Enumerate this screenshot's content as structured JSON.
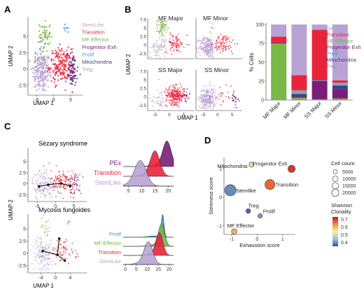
{
  "colors": {
    "StemLike": "#b9a3d4",
    "Transition": "#e8243c",
    "MF Effector": "#7ab648",
    "Progenitor Exh": "#7a1e78",
    "Prolif": "#3b9fd1",
    "Mitochondria": "#3b3f8c",
    "Treg": "#9f9aa8",
    "axis": "#333333"
  },
  "panels": {
    "A": {
      "letter": "A",
      "xlabel": "UMAP 1",
      "ylabel": "UMAP 2"
    },
    "B": {
      "letter": "B",
      "xlabel": "UMAP 1",
      "ylabel": "UMAP 2"
    },
    "C": {
      "letter": "C",
      "xlabel": "UMAP 1",
      "ylabel": "UMAP 2"
    },
    "D": {
      "letter": "D"
    }
  },
  "legend_A": [
    {
      "name": "StemLike",
      "color": "#b9a3d4"
    },
    {
      "name": "Transition",
      "color": "#e8243c"
    },
    {
      "name": "MF Effector",
      "color": "#7ab648"
    },
    {
      "name": "Progenitor Exh",
      "color": "#7a1e78"
    },
    {
      "name": "Prolif",
      "color": "#3b9fd1"
    },
    {
      "name": "Mitochondria",
      "color": "#3b3f8c"
    },
    {
      "name": "Treg",
      "color": "#9f9aa8"
    }
  ],
  "facets_B": [
    "MF Major",
    "MF Minor",
    "SS Major",
    "SS Minor"
  ],
  "titles_C": [
    "Sézary syndrome",
    "Mycosis fungoides"
  ],
  "ridge_labels_C_top": [
    "PEx",
    "Transition",
    "StemLike"
  ],
  "ridge_labels_C_bottom": [
    "Prolif",
    "MF Effector",
    "Transition",
    "StemLike"
  ],
  "chart_data": [
    {
      "id": "A",
      "type": "scatter",
      "xlabel": "UMAP 1",
      "ylabel": "UMAP 2",
      "xticks": [
        -5,
        0,
        5
      ],
      "yticks": [
        -2.5,
        0.0,
        2.5,
        5.0,
        7.5
      ],
      "xlim": [
        -7.5,
        8.5
      ],
      "ylim": [
        -4,
        8
      ],
      "clusters": [
        {
          "name": "StemLike",
          "color": "#b9a3d4",
          "cx": -3.5,
          "cy": -0.5,
          "sx": 1.4,
          "sy": 1.6,
          "n": 190
        },
        {
          "name": "Treg",
          "color": "#9f9aa8",
          "cx": -4.0,
          "cy": 2.0,
          "sx": 0.9,
          "sy": 1.5,
          "n": 40
        },
        {
          "name": "MF Effector",
          "color": "#7ab648",
          "cx": -2.5,
          "cy": 5.2,
          "sx": 0.8,
          "sy": 1.3,
          "n": 55
        },
        {
          "name": "Transition",
          "color": "#e8243c",
          "cx": 2.0,
          "cy": 0.5,
          "sx": 1.6,
          "sy": 1.3,
          "n": 180
        },
        {
          "name": "Progenitor Exh",
          "color": "#7a1e78",
          "cx": 5.5,
          "cy": 0.0,
          "sx": 0.8,
          "sy": 1.3,
          "n": 70
        },
        {
          "name": "Prolif",
          "color": "#3b9fd1",
          "cx": 3.5,
          "cy": 6.0,
          "sx": 0.4,
          "sy": 0.4,
          "n": 8
        },
        {
          "name": "Mitochondria",
          "color": "#3b3f8c",
          "cx": 6.0,
          "cy": -1.5,
          "sx": 0.6,
          "sy": 0.5,
          "n": 12
        }
      ]
    },
    {
      "id": "B-stacked",
      "type": "bar",
      "ylabel": "% Cells",
      "yticks": [
        0,
        25,
        50,
        75,
        100
      ],
      "ylim": [
        0,
        100
      ],
      "categories": [
        "MF Major",
        "MF Minor",
        "SS Major",
        "SS Minor"
      ],
      "series": [
        {
          "name": "MF Effector",
          "values": [
            75,
            3,
            1,
            2
          ]
        },
        {
          "name": "Progenitor Exh",
          "values": [
            1,
            2,
            24,
            12
          ]
        },
        {
          "name": "Mitochondria",
          "values": [
            0,
            3,
            0,
            5
          ]
        },
        {
          "name": "Prolif",
          "values": [
            0,
            1,
            1,
            1
          ]
        },
        {
          "name": "Treg",
          "values": [
            0,
            4,
            0,
            3
          ]
        },
        {
          "name": "Transition",
          "values": [
            8,
            20,
            67,
            3
          ]
        },
        {
          "name": "StemLike",
          "values": [
            16,
            67,
            7,
            74
          ]
        }
      ]
    },
    {
      "id": "B-umap",
      "type": "scatter",
      "xlabel": "UMAP 1",
      "ylabel": "UMAP 2",
      "xticks": [
        -5,
        0,
        5
      ],
      "yticks": [
        -2.5,
        0,
        2.5,
        5,
        7.5
      ],
      "facets": [
        {
          "name": "MF Major",
          "weights": {
            "MF Effector": 3,
            "Transition": 1,
            "StemLike": 0.8,
            "Progenitor Exh": 0.1
          }
        },
        {
          "name": "MF Minor",
          "weights": {
            "StemLike": 3,
            "Transition": 1,
            "MF Effector": 0.3,
            "Progenitor Exh": 0.2
          }
        },
        {
          "name": "SS Major",
          "weights": {
            "Transition": 3,
            "StemLike": 0.4,
            "Progenitor Exh": 0.8
          }
        },
        {
          "name": "SS Minor",
          "weights": {
            "StemLike": 3,
            "Progenitor Exh": 0.9,
            "Transition": 0.2
          }
        }
      ]
    },
    {
      "id": "C",
      "type": "line",
      "xlabel": "UMAP 1",
      "ylabel": "UMAP 2",
      "panels": [
        {
          "title": "Sézary syndrome",
          "xticks": [
            -5,
            0,
            5
          ],
          "yticks": [
            -2.5,
            0.0,
            2.5,
            5.0
          ],
          "trajectory": [
            [
              -4.5,
              -0.6
            ],
            [
              -2.0,
              -0.2
            ],
            [
              1.5,
              0.1
            ],
            [
              4.0,
              -0.5
            ]
          ],
          "ridge_xticks": [
            5,
            10,
            15,
            20
          ],
          "ridges": [
            {
              "name": "PEx",
              "color": "#7a1e78",
              "peak": 19.5,
              "width": 1.6
            },
            {
              "name": "Transition",
              "color": "#e8243c",
              "peak": 15.0,
              "width": 1.8
            },
            {
              "name": "StemLike",
              "color": "#b9a3d4",
              "peak": 9.5,
              "width": 2.2
            }
          ]
        },
        {
          "title": "Mycosis fungoides",
          "xticks": [
            -4,
            0,
            4
          ],
          "yticks": [
            -2.5,
            0.0,
            2.5,
            5.0
          ],
          "trajectory": [
            [
              -3.5,
              0.5
            ],
            [
              0.5,
              -0.3
            ],
            [
              2.5,
              -1.5
            ]
          ],
          "branch": [
            [
              0.5,
              -0.3
            ],
            [
              1.0,
              3.0
            ]
          ],
          "ridge_xticks": [
            0,
            5,
            10,
            15,
            20
          ],
          "ridges": [
            {
              "name": "Prolif",
              "color": "#3b9fd1",
              "peak": 17.0,
              "width": 0.6
            },
            {
              "name": "MF Effector",
              "color": "#7ab648",
              "peak": 16.5,
              "width": 1.4
            },
            {
              "name": "Transition",
              "color": "#e8243c",
              "peak": 15.5,
              "width": 1.6
            },
            {
              "name": "StemLike",
              "color": "#b9a3d4",
              "peak": 10.5,
              "width": 2.0
            }
          ]
        }
      ]
    },
    {
      "id": "D",
      "type": "scatter",
      "xlabel": "Exhaustion score",
      "ylabel": "Stemness score",
      "xticks": [
        -1,
        0,
        1
      ],
      "yticks": [
        -1,
        0,
        1
      ],
      "xlim": [
        -1.3,
        1.5
      ],
      "ylim": [
        -1.3,
        1.4
      ],
      "size_legend_title": "Cell count",
      "size_legend": [
        5000,
        10000,
        15000,
        20000
      ],
      "color_legend_title": "Shannon\nClonality",
      "color_legend_ticks": [
        0.7,
        0.6,
        0.5,
        0.4
      ],
      "points": [
        {
          "label": "Mitochondria",
          "x": -0.22,
          "y": 1.15,
          "size": 1000,
          "clonality": 0.55
        },
        {
          "label": "Progenitor Exh",
          "x": 1.35,
          "y": 1.0,
          "size": 4000,
          "clonality": 0.72
        },
        {
          "label": "Transition",
          "x": 0.5,
          "y": 0.45,
          "size": 10000,
          "clonality": 0.68
        },
        {
          "label": "Stemlike",
          "x": -1.05,
          "y": 0.25,
          "size": 14000,
          "clonality": 0.42
        },
        {
          "label": "Treg",
          "x": -0.35,
          "y": -0.48,
          "size": 800,
          "clonality": 0.38
        },
        {
          "label": "Prolif",
          "x": 0.12,
          "y": -0.65,
          "size": 700,
          "clonality": 0.44
        },
        {
          "label": "MF Effector",
          "x": -0.9,
          "y": -1.2,
          "size": 1500,
          "clonality": 0.62
        }
      ]
    }
  ]
}
